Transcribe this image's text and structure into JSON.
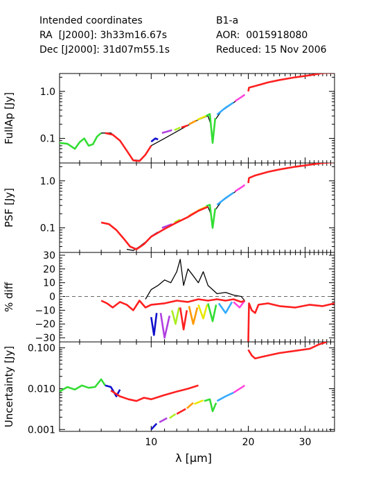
{
  "header": {
    "intended": "Intended coordinates",
    "ra": "RA  [J2000]: 3h33m16.67s",
    "dec": "Dec [J2000]: 31d07m55.1s",
    "target": "B1-a",
    "aor": "AOR:  0015918080",
    "reduced": "Reduced: 15 Nov 2006"
  },
  "chart_data": {
    "type": "line",
    "xlabel": "λ [μm]",
    "x_axis": {
      "scale": "log",
      "range": [
        5.2,
        37
      ],
      "ticks": [
        10,
        20,
        30
      ],
      "tick_labels": [
        "10",
        "20",
        "30"
      ]
    },
    "colors": {
      "red": "#ff2020",
      "black": "#000000",
      "green": "#33dd33",
      "blue": "#1010cc",
      "purple": "#b040e0",
      "lime": "#aaee22",
      "orange": "#ff9900",
      "yellow": "#e8e800",
      "magenta": "#ff44dd",
      "cyan": "#33aaff"
    },
    "panels": [
      {
        "id": "fullap",
        "ylabel": "FullAp [Jy]",
        "yscale": "log",
        "ylim": [
          0.03,
          2.4
        ],
        "yticks": [
          0.1,
          1.0
        ],
        "ytick_labels": [
          "0.1",
          "1.0"
        ],
        "series": [
          {
            "color": "green",
            "x": [
              5.2,
              5.5,
              5.8,
              6.0,
              6.2,
              6.4,
              6.6,
              6.8,
              7.0
            ],
            "y": [
              0.08,
              0.077,
              0.06,
              0.083,
              0.1,
              0.07,
              0.075,
              0.11,
              0.13
            ]
          },
          {
            "color": "black",
            "x": [
              7.0,
              7.5,
              8.0,
              8.4,
              8.8,
              9.2,
              9.6,
              10.0,
              11.0,
              12.0,
              13.0,
              14.0,
              15.0,
              15.3,
              15.5,
              15.8,
              16.5,
              17.5,
              19.0,
              19.5
            ],
            "y": [
              0.13,
              0.13,
              0.09,
              0.055,
              0.035,
              0.034,
              0.045,
              0.07,
              0.1,
              0.14,
              0.19,
              0.25,
              0.3,
              0.2,
              0.08,
              0.25,
              0.38,
              0.5,
              0.75,
              0.85
            ]
          },
          {
            "color": "blue",
            "x": [
              10.0,
              10.3,
              10.5
            ],
            "y": [
              0.085,
              0.1,
              0.095
            ]
          },
          {
            "color": "purple",
            "x": [
              10.8,
              11.2,
              11.6
            ],
            "y": [
              0.13,
              0.14,
              0.15
            ]
          },
          {
            "color": "lime",
            "x": [
              11.8,
              12.3
            ],
            "y": [
              0.15,
              0.17
            ]
          },
          {
            "color": "red",
            "x": [
              12.4,
              13.0
            ],
            "y": [
              0.17,
              0.19
            ]
          },
          {
            "color": "orange",
            "x": [
              13.1,
              13.8
            ],
            "y": [
              0.2,
              0.24
            ]
          },
          {
            "color": "yellow",
            "x": [
              13.9,
              14.8
            ],
            "y": [
              0.25,
              0.3
            ]
          },
          {
            "color": "green",
            "x": [
              14.8,
              15.2,
              15.5,
              15.8
            ],
            "y": [
              0.3,
              0.33,
              0.08,
              0.27
            ]
          },
          {
            "color": "cyan",
            "x": [
              16.0,
              17.0,
              18.0
            ],
            "y": [
              0.32,
              0.45,
              0.58
            ]
          },
          {
            "color": "magenta",
            "x": [
              18.2,
              19.0,
              19.5
            ],
            "y": [
              0.62,
              0.75,
              0.85
            ]
          },
          {
            "color": "red",
            "x": [
              7.2,
              7.6,
              8.0,
              8.4,
              8.8,
              9.2,
              9.6,
              10.0
            ],
            "y": [
              0.13,
              0.12,
              0.09,
              0.055,
              0.034,
              0.033,
              0.045,
              0.07
            ]
          },
          {
            "color": "red",
            "x": [
              20.0,
              20.1,
              21.0,
              23.0,
              25.0,
              28.0,
              31.0,
              34.0,
              37.0
            ],
            "y": [
              1.0,
              1.2,
              1.3,
              1.55,
              1.75,
              2.0,
              2.2,
              2.45,
              2.5
            ]
          }
        ]
      },
      {
        "id": "psf",
        "ylabel": "PSF [Jy]",
        "yscale": "log",
        "ylim": [
          0.03,
          2.4
        ],
        "yticks": [
          0.1,
          1.0
        ],
        "ytick_labels": [
          "0.1",
          "1.0"
        ],
        "series": [
          {
            "color": "black",
            "x": [
              8.4,
              8.8,
              9.2,
              9.6,
              10.0,
              11.0,
              12.0,
              13.0,
              14.0,
              15.0,
              15.3,
              15.5,
              15.8,
              16.5,
              17.5,
              19.0,
              19.5
            ],
            "y": [
              0.035,
              0.033,
              0.04,
              0.05,
              0.065,
              0.095,
              0.13,
              0.17,
              0.23,
              0.28,
              0.2,
              0.1,
              0.24,
              0.36,
              0.48,
              0.72,
              0.82
            ]
          },
          {
            "color": "blue",
            "x": [
              10.0,
              10.5
            ],
            "y": [
              0.065,
              0.08
            ]
          },
          {
            "color": "purple",
            "x": [
              10.8,
              11.6
            ],
            "y": [
              0.1,
              0.12
            ]
          },
          {
            "color": "lime",
            "x": [
              11.8,
              12.3
            ],
            "y": [
              0.13,
              0.15
            ]
          },
          {
            "color": "orange",
            "x": [
              13.1,
              13.8
            ],
            "y": [
              0.18,
              0.22
            ]
          },
          {
            "color": "yellow",
            "x": [
              13.9,
              14.8
            ],
            "y": [
              0.23,
              0.28
            ]
          },
          {
            "color": "green",
            "x": [
              14.8,
              15.2,
              15.5,
              15.8
            ],
            "y": [
              0.29,
              0.31,
              0.1,
              0.26
            ]
          },
          {
            "color": "cyan",
            "x": [
              16.0,
              17.0,
              18.0
            ],
            "y": [
              0.31,
              0.43,
              0.56
            ]
          },
          {
            "color": "magenta",
            "x": [
              18.2,
              19.0,
              19.5
            ],
            "y": [
              0.6,
              0.72,
              0.82
            ]
          },
          {
            "color": "red",
            "x": [
              7.0,
              7.4,
              7.8,
              8.2,
              8.6,
              9.0,
              9.5,
              10.0,
              11.0,
              12.0,
              13.0,
              14.0,
              15.0
            ],
            "y": [
              0.13,
              0.12,
              0.09,
              0.06,
              0.04,
              0.035,
              0.045,
              0.065,
              0.095,
              0.13,
              0.17,
              0.23,
              0.28
            ]
          },
          {
            "color": "red",
            "x": [
              20.0,
              20.1,
              21.0,
              23.0,
              25.0,
              28.0,
              31.0,
              34.0,
              37.0
            ],
            "y": [
              0.9,
              1.15,
              1.3,
              1.55,
              1.75,
              2.0,
              2.2,
              2.4,
              2.5
            ]
          }
        ]
      },
      {
        "id": "pctdiff",
        "ylabel": "% diff",
        "yscale": "linear",
        "ylim": [
          -33,
          32
        ],
        "yticks": [
          30,
          20,
          10,
          0,
          -10,
          -20,
          -30
        ],
        "ytick_labels": [
          "30",
          "20",
          "10",
          "0",
          "−10",
          "−20",
          "−30"
        ],
        "reference_line": 0,
        "series": [
          {
            "color": "black",
            "x": [
              9.6,
              10.0,
              10.5,
              11.0,
              11.5,
              12.0,
              12.3,
              12.6,
              13.0,
              13.5,
              14.0,
              14.5,
              15.0,
              15.5,
              16.0,
              17.0,
              18.0,
              19.0,
              19.5
            ],
            "y": [
              -2,
              5,
              8,
              12,
              10,
              18,
              27,
              8,
              20,
              15,
              10,
              18,
              8,
              5,
              2,
              3,
              1,
              0,
              -3
            ]
          },
          {
            "color": "blue",
            "x": [
              10.0,
              10.2,
              10.4
            ],
            "y": [
              -15,
              -28,
              -12
            ]
          },
          {
            "color": "purple",
            "x": [
              10.7,
              11.0,
              11.4
            ],
            "y": [
              -12,
              -30,
              -14
            ]
          },
          {
            "color": "lime",
            "x": [
              11.6,
              11.9,
              12.2
            ],
            "y": [
              -10,
              -20,
              -8
            ]
          },
          {
            "color": "red",
            "x": [
              12.3,
              12.6,
              12.9
            ],
            "y": [
              -8,
              -24,
              -10
            ]
          },
          {
            "color": "orange",
            "x": [
              13.1,
              13.5,
              13.9
            ],
            "y": [
              -7,
              -20,
              -8
            ]
          },
          {
            "color": "yellow",
            "x": [
              14.0,
              14.5,
              14.9
            ],
            "y": [
              -6,
              -16,
              -6
            ]
          },
          {
            "color": "green",
            "x": [
              15.0,
              15.5,
              15.9
            ],
            "y": [
              -5,
              -18,
              -6
            ]
          },
          {
            "color": "cyan",
            "x": [
              16.2,
              17.0,
              17.8
            ],
            "y": [
              -5,
              -12,
              -4
            ]
          },
          {
            "color": "magenta",
            "x": [
              18.0,
              18.8,
              19.5
            ],
            "y": [
              -4,
              -8,
              -3
            ]
          },
          {
            "color": "red",
            "x": [
              7.0,
              7.3,
              7.6,
              8.0,
              8.4,
              8.8,
              9.2,
              9.6,
              10.0,
              11.0,
              12.0,
              13.0,
              14.0,
              15.0,
              16.0,
              17.0,
              18.0,
              19.0,
              19.5
            ],
            "y": [
              -3,
              -5,
              -8,
              -4,
              -6,
              -10,
              -3,
              -8,
              -6,
              -5,
              -3,
              -4,
              -2,
              -3,
              -2,
              -3,
              -2,
              -4,
              -3
            ]
          },
          {
            "color": "red",
            "x": [
              20.0,
              20.1,
              20.5,
              21.0,
              21.5,
              23.0,
              25.0,
              28.0,
              31.0,
              34.0,
              37.0
            ],
            "y": [
              -33,
              -5,
              -10,
              -12,
              -6,
              -5,
              -7,
              -8,
              -6,
              -7,
              -5
            ]
          }
        ]
      },
      {
        "id": "uncertainty",
        "ylabel": "Uncertainty [Jy]",
        "yscale": "log",
        "ylim": [
          0.0009,
          0.14
        ],
        "yticks": [
          0.001,
          0.01,
          0.1
        ],
        "ytick_labels": [
          "0.001",
          "0.010",
          "0.100"
        ],
        "series": [
          {
            "color": "green",
            "x": [
              5.2,
              5.5,
              5.8,
              6.1,
              6.4,
              6.7,
              7.0,
              7.2
            ],
            "y": [
              0.0085,
              0.011,
              0.0095,
              0.012,
              0.0105,
              0.011,
              0.017,
              0.012
            ]
          },
          {
            "color": "blue",
            "x": [
              7.2,
              7.5,
              7.8,
              8.0
            ],
            "y": [
              0.012,
              0.011,
              0.0065,
              0.0095
            ]
          },
          {
            "color": "red",
            "x": [
              7.5,
              8.0,
              8.5,
              9.0,
              9.5,
              10.0,
              11.0,
              12.0,
              13.0,
              14.0
            ],
            "y": [
              0.009,
              0.0065,
              0.0055,
              0.005,
              0.006,
              0.0055,
              0.007,
              0.0085,
              0.01,
              0.012
            ]
          },
          {
            "color": "blue",
            "x": [
              10.0,
              10.4
            ],
            "y": [
              0.001,
              0.0014
            ]
          },
          {
            "color": "purple",
            "x": [
              10.6,
              11.2
            ],
            "y": [
              0.0015,
              0.0019
            ]
          },
          {
            "color": "lime",
            "x": [
              11.4,
              11.9
            ],
            "y": [
              0.0019,
              0.0024
            ]
          },
          {
            "color": "red",
            "x": [
              12.0,
              12.8
            ],
            "y": [
              0.0024,
              0.0032
            ]
          },
          {
            "color": "orange",
            "x": [
              12.9,
              13.5
            ],
            "y": [
              0.0033,
              0.0045
            ]
          },
          {
            "color": "yellow",
            "x": [
              13.6,
              14.5
            ],
            "y": [
              0.0042,
              0.0052
            ]
          },
          {
            "color": "green",
            "x": [
              14.6,
              15.2,
              15.5,
              15.9
            ],
            "y": [
              0.005,
              0.0055,
              0.0028,
              0.0045
            ]
          },
          {
            "color": "cyan",
            "x": [
              16.0,
              17.0,
              18.0
            ],
            "y": [
              0.005,
              0.0065,
              0.008
            ]
          },
          {
            "color": "magenta",
            "x": [
              18.0,
              19.0,
              19.5
            ],
            "y": [
              0.008,
              0.0105,
              0.012
            ]
          },
          {
            "color": "red",
            "x": [
              20.0,
              20.5,
              21.0,
              23.0,
              25.0,
              28.0,
              31.0,
              33.0,
              34.0,
              35.0
            ],
            "y": [
              0.09,
              0.065,
              0.055,
              0.065,
              0.075,
              0.085,
              0.095,
              0.12,
              0.13,
              0.14
            ]
          }
        ]
      }
    ]
  }
}
